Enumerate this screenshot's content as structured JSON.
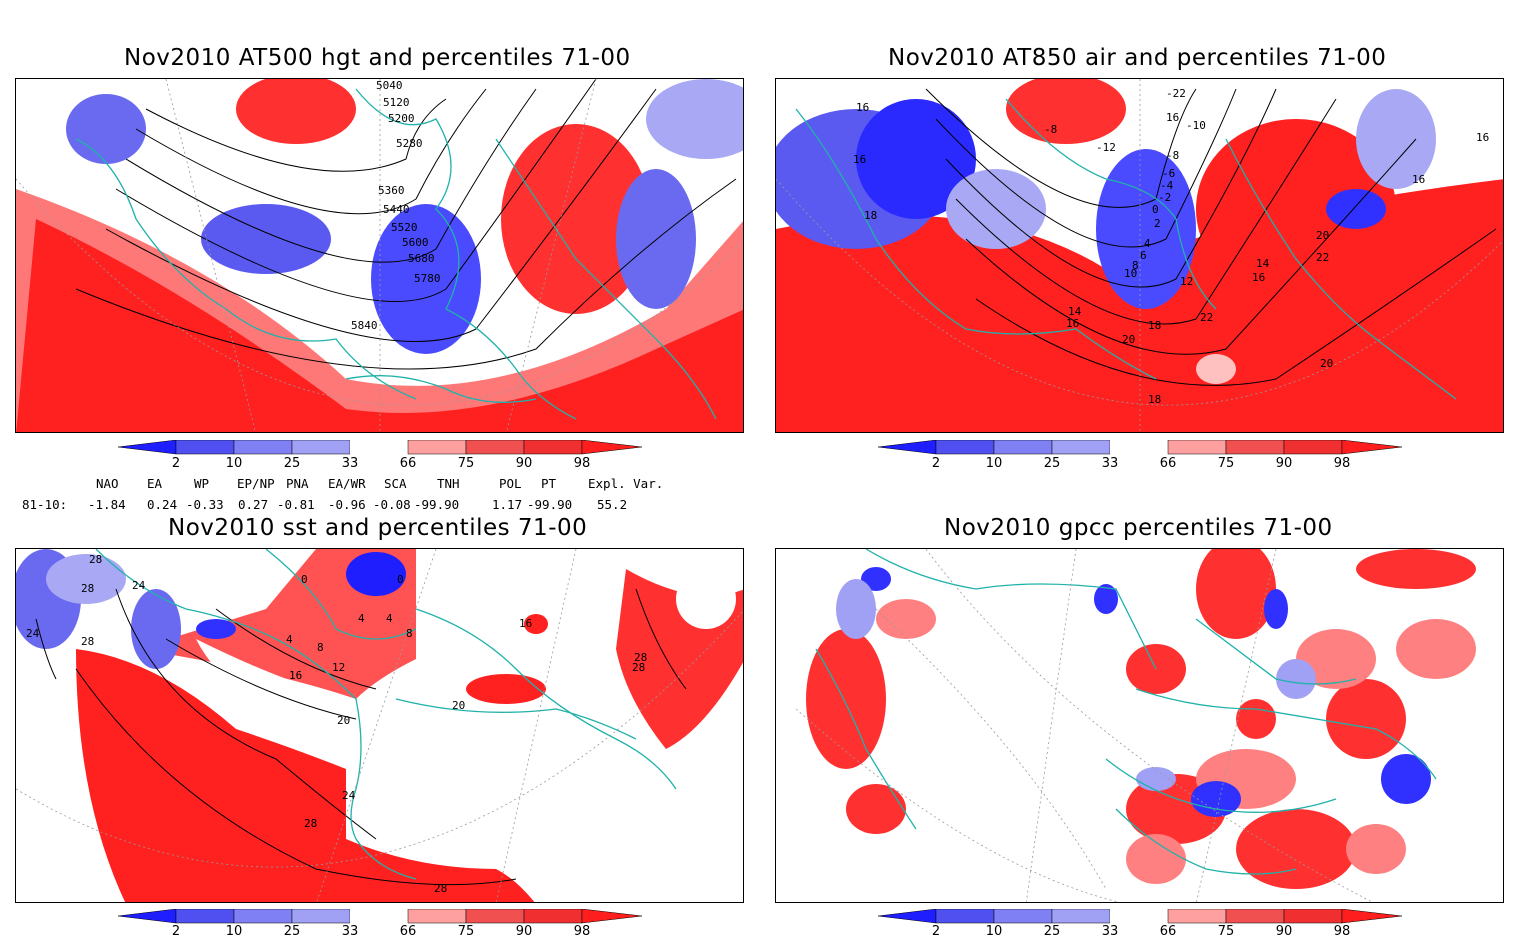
{
  "panels": [
    {
      "id": "p1",
      "title": "Nov2010 AT500 hgt and percentiles 71-00",
      "contours": [
        "5040",
        "5120",
        "5200",
        "5280",
        "5360",
        "5440",
        "5520",
        "5600",
        "5680",
        "5780",
        "5840"
      ]
    },
    {
      "id": "p2",
      "title": "Nov2010 AT850 air and percentiles 71-00",
      "contours": [
        "16",
        "16",
        "18",
        "-8",
        "-12",
        "-22",
        "16",
        "-10",
        "-8",
        "-6",
        "-4",
        "-2",
        "0",
        "2",
        "4",
        "6",
        "8",
        "10",
        "12",
        "14",
        "16",
        "14",
        "16",
        "18",
        "20",
        "22",
        "22",
        "20",
        "18",
        "16",
        "16",
        "20"
      ]
    },
    {
      "id": "p3",
      "title": "Nov2010 sst and percentiles 71-00",
      "contours": [
        "28",
        "28",
        "24",
        "24",
        "28",
        "0",
        "0",
        "4",
        "4",
        "8",
        "8",
        "4",
        "12",
        "16",
        "20",
        "16",
        "20",
        "24",
        "28",
        "28",
        "28",
        "28"
      ]
    },
    {
      "id": "p4",
      "title": "Nov2010 gpcc percentiles 71-00",
      "contours": []
    }
  ],
  "colorbar": {
    "labels": [
      "2",
      "10",
      "25",
      "33",
      "66",
      "75",
      "90",
      "98"
    ],
    "colors": {
      "blue_dark": "#1e1eff",
      "blue_mid": "#5050f0",
      "blue_light": "#a0a0f5",
      "red_light": "#ffa0a0",
      "red_mid": "#f05050",
      "red_dark": "#ff1e1e"
    }
  },
  "indices": {
    "headers": [
      "NAO",
      "EA",
      "WP",
      "EP/NP",
      "PNA",
      "EA/WR",
      "SCA",
      "TNH",
      "POL",
      "PT",
      "Expl. Var."
    ],
    "row_label": "81-10:",
    "values": [
      "-1.84",
      "0.24",
      "-0.33",
      "0.27",
      "-0.81",
      "-0.96",
      "-0.08",
      "-99.90",
      "1.17",
      "-99.90",
      "55.2"
    ]
  },
  "colors": {
    "coast": "#20b2aa",
    "contour": "#000000",
    "grid": "#999999"
  }
}
